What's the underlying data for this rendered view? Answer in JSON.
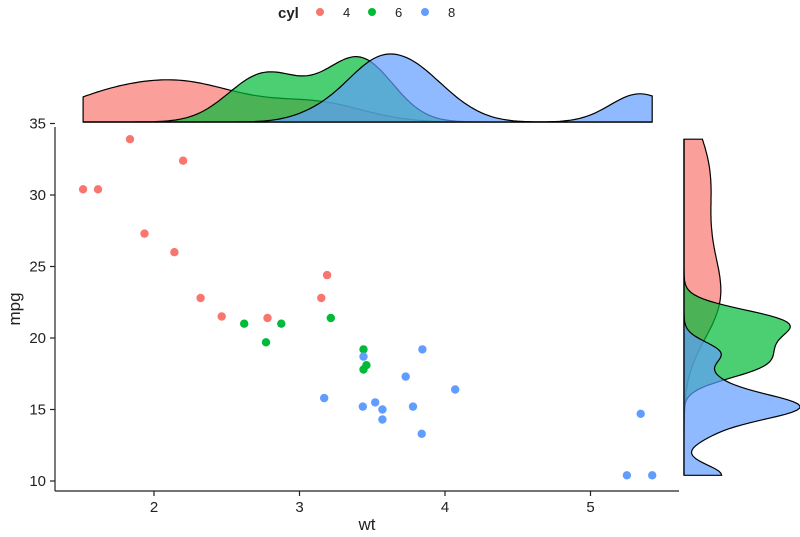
{
  "chart_data": {
    "type": "scatter",
    "title": "",
    "xlabel": "wt",
    "ylabel": "mpg",
    "xlim": [
      1.4,
      5.6
    ],
    "ylim": [
      9.5,
      35
    ],
    "xticks": [
      2,
      3,
      4,
      5
    ],
    "yticks": [
      10,
      15,
      20,
      25,
      30,
      35
    ],
    "grid": false,
    "legend": {
      "title": "cyl",
      "position": "top",
      "entries": [
        {
          "label": "4",
          "color": "#F8766D"
        },
        {
          "label": "6",
          "color": "#00BA38"
        },
        {
          "label": "8",
          "color": "#619CFF"
        }
      ]
    },
    "series": [
      {
        "name": "4",
        "color": "#F8766D",
        "points": [
          {
            "x": 1.513,
            "y": 30.4
          },
          {
            "x": 1.615,
            "y": 30.4
          },
          {
            "x": 1.835,
            "y": 33.9
          },
          {
            "x": 1.935,
            "y": 27.3
          },
          {
            "x": 2.14,
            "y": 26.0
          },
          {
            "x": 2.2,
            "y": 32.4
          },
          {
            "x": 2.32,
            "y": 22.8
          },
          {
            "x": 2.465,
            "y": 21.5
          },
          {
            "x": 2.78,
            "y": 21.4
          },
          {
            "x": 3.15,
            "y": 22.8
          },
          {
            "x": 3.19,
            "y": 24.4
          }
        ]
      },
      {
        "name": "6",
        "color": "#00BA38",
        "points": [
          {
            "x": 2.62,
            "y": 21.0
          },
          {
            "x": 2.77,
            "y": 19.7
          },
          {
            "x": 2.875,
            "y": 21.0
          },
          {
            "x": 3.215,
            "y": 21.4
          },
          {
            "x": 3.44,
            "y": 19.2
          },
          {
            "x": 3.44,
            "y": 17.8
          },
          {
            "x": 3.46,
            "y": 18.1
          }
        ]
      },
      {
        "name": "8",
        "color": "#619CFF",
        "points": [
          {
            "x": 3.17,
            "y": 15.8
          },
          {
            "x": 3.435,
            "y": 15.2
          },
          {
            "x": 3.44,
            "y": 18.7
          },
          {
            "x": 3.52,
            "y": 15.5
          },
          {
            "x": 3.57,
            "y": 14.3
          },
          {
            "x": 3.57,
            "y": 15.0
          },
          {
            "x": 3.73,
            "y": 17.3
          },
          {
            "x": 3.78,
            "y": 15.2
          },
          {
            "x": 3.84,
            "y": 13.3
          },
          {
            "x": 3.845,
            "y": 19.2
          },
          {
            "x": 4.07,
            "y": 16.4
          },
          {
            "x": 5.25,
            "y": 10.4
          },
          {
            "x": 5.345,
            "y": 14.7
          },
          {
            "x": 5.424,
            "y": 10.4
          }
        ]
      }
    ],
    "marginal": {
      "type": "density",
      "top": "wt",
      "right": "mpg"
    }
  }
}
